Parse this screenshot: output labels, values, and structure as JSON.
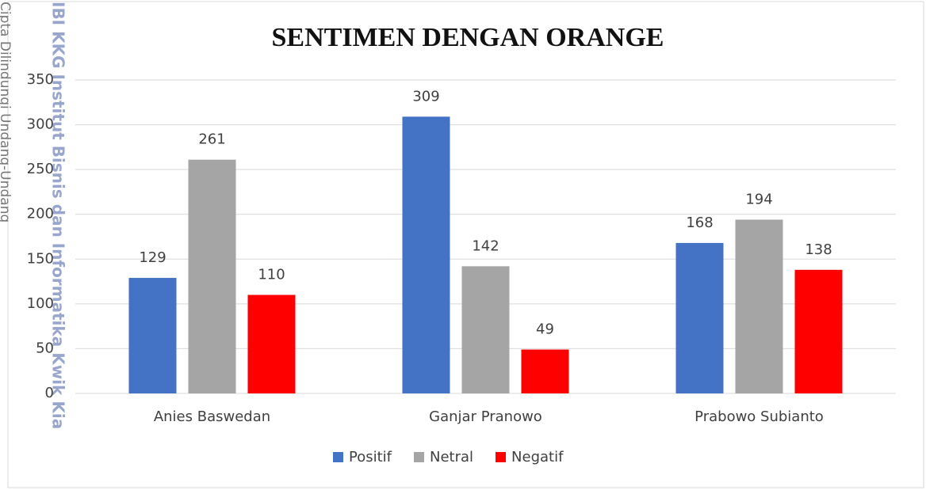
{
  "chart_data": {
    "type": "bar",
    "title": "SENTIMEN DENGAN ORANGE",
    "categories": [
      "Anies Baswedan",
      "Ganjar Pranowo",
      "Prabowo Subianto"
    ],
    "series": [
      {
        "name": "Positif",
        "color": "#4472c4",
        "values": [
          129,
          309,
          168
        ]
      },
      {
        "name": "Netral",
        "color": "#a5a5a5",
        "values": [
          261,
          142,
          194
        ]
      },
      {
        "name": "Negatif",
        "color": "#ff0000",
        "values": [
          110,
          49,
          138
        ]
      }
    ],
    "ylim": [
      0,
      350
    ],
    "yticks": [
      0,
      50,
      100,
      150,
      200,
      250,
      300,
      350
    ],
    "grid": true,
    "legend": "bottom",
    "watermark": [
      "Cipta Dilindungi Undang-Undang",
      "IBI KKG Institut Bisnis dan Informatika Kwik Kia"
    ]
  }
}
